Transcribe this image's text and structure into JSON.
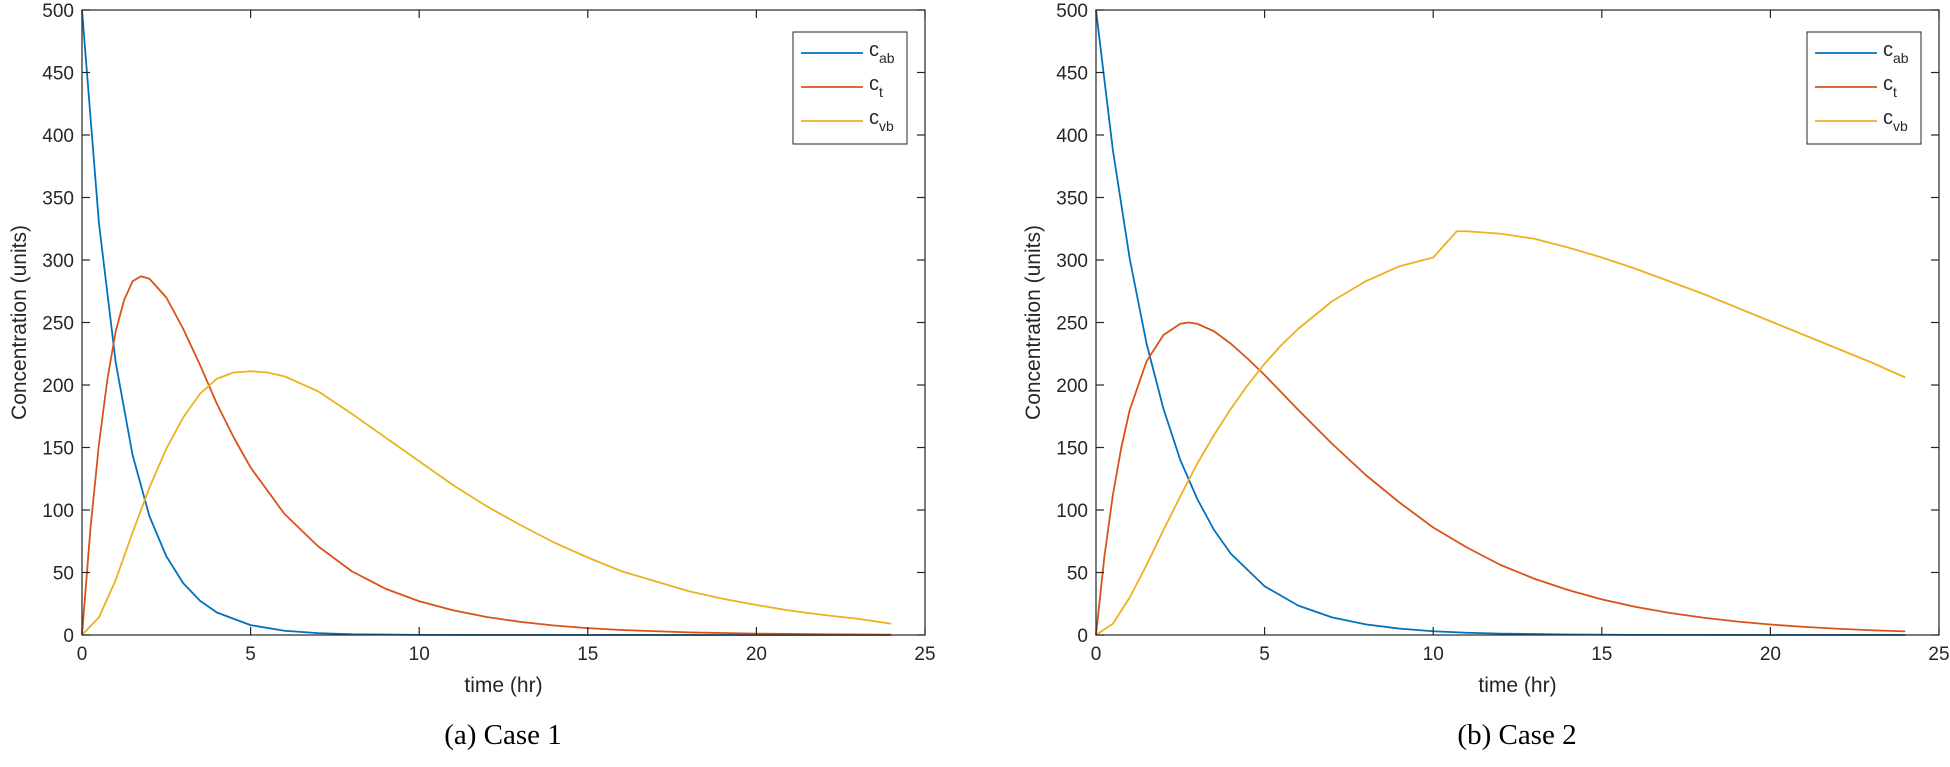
{
  "chart_data": [
    {
      "type": "line",
      "caption": "(a) Case 1",
      "xlabel": "time (hr)",
      "ylabel": "Concentration (units)",
      "xlim": [
        0,
        25
      ],
      "ylim": [
        0,
        500
      ],
      "xticks": [
        0,
        5,
        10,
        15,
        20,
        25
      ],
      "yticks": [
        0,
        50,
        100,
        150,
        200,
        250,
        300,
        350,
        400,
        450,
        500
      ],
      "grid": false,
      "legend": "top-right",
      "series": [
        {
          "name": "c",
          "subscript": "ab",
          "color": "#0072BD",
          "x": [
            0,
            0.5,
            1,
            1.5,
            2,
            2.5,
            3,
            3.5,
            4,
            5,
            6,
            7,
            8,
            10,
            12,
            15,
            20,
            24
          ],
          "y": [
            500,
            330,
            218,
            144,
            95,
            63,
            41.5,
            27.4,
            18,
            7.9,
            3.4,
            1.5,
            0.6,
            0.1,
            0,
            0,
            0,
            0
          ]
        },
        {
          "name": "c",
          "subscript": "t",
          "color": "#D95319",
          "x": [
            0,
            0.25,
            0.5,
            0.75,
            1,
            1.25,
            1.5,
            1.75,
            2,
            2.5,
            3,
            3.5,
            4,
            4.5,
            5,
            6,
            7,
            8,
            9,
            10,
            11,
            12,
            13,
            14,
            15,
            16,
            18,
            20,
            22,
            24
          ],
          "y": [
            0,
            85,
            152,
            204,
            243,
            268,
            283,
            287,
            285,
            270,
            245,
            216,
            185,
            158,
            134,
            97,
            71,
            51,
            37,
            27,
            19.8,
            14.4,
            10.5,
            7.6,
            5.5,
            4,
            2.1,
            1.1,
            0.6,
            0.3
          ]
        },
        {
          "name": "c",
          "subscript": "vb",
          "color": "#EDB120",
          "x": [
            0,
            0.5,
            1,
            1.5,
            2,
            2.5,
            3,
            3.5,
            4,
            4.5,
            5,
            5.5,
            6,
            7,
            8,
            9,
            10,
            11,
            12,
            13,
            14,
            15,
            16,
            17,
            18,
            19,
            20,
            21,
            22,
            23,
            24
          ],
          "y": [
            0,
            14,
            44,
            82,
            118,
            149,
            174,
            193,
            205,
            210,
            211,
            210,
            207,
            195,
            177,
            158,
            139,
            120,
            103,
            88,
            74,
            62,
            51,
            43,
            35,
            29,
            24,
            19.5,
            16,
            13,
            9
          ]
        }
      ]
    },
    {
      "type": "line",
      "caption": "(b) Case 2",
      "xlabel": "time (hr)",
      "ylabel": "Concentration (units)",
      "xlim": [
        0,
        25
      ],
      "ylim": [
        0,
        500
      ],
      "xticks": [
        0,
        5,
        10,
        15,
        20,
        25
      ],
      "yticks": [
        0,
        50,
        100,
        150,
        200,
        250,
        300,
        350,
        400,
        450,
        500
      ],
      "grid": false,
      "legend": "top-right",
      "series": [
        {
          "name": "c",
          "subscript": "ab",
          "color": "#0072BD",
          "x": [
            0,
            0.5,
            1,
            1.5,
            2,
            2.5,
            3,
            3.5,
            4,
            5,
            6,
            7,
            8,
            9,
            10,
            11,
            12,
            14,
            16,
            20,
            24
          ],
          "y": [
            500,
            388,
            301,
            233,
            181,
            140,
            109,
            84,
            65,
            39,
            23.5,
            14.1,
            8.5,
            5.1,
            3,
            1.8,
            1.1,
            0.4,
            0.1,
            0,
            0
          ]
        },
        {
          "name": "c",
          "subscript": "t",
          "color": "#D95319",
          "x": [
            0,
            0.25,
            0.5,
            0.75,
            1,
            1.5,
            2,
            2.5,
            2.75,
            3,
            3.5,
            4,
            4.5,
            5,
            6,
            7,
            8,
            9,
            10,
            11,
            12,
            13,
            14,
            15,
            16,
            17,
            18,
            19,
            20,
            21,
            22,
            23,
            24
          ],
          "y": [
            0,
            63,
            112,
            150,
            180,
            219,
            240,
            249,
            250,
            249,
            243,
            233,
            221,
            208,
            180,
            153,
            128,
            106,
            86,
            70,
            56,
            45,
            36,
            28.5,
            22.5,
            17.7,
            13.9,
            10.8,
            8.4,
            6.5,
            5,
            3.8,
            2.9
          ]
        },
        {
          "name": "c",
          "subscript": "vb",
          "color": "#EDB120",
          "x": [
            0,
            0.5,
            1,
            1.5,
            2,
            2.5,
            3,
            3.5,
            4,
            4.5,
            5,
            5.5,
            6,
            7,
            8,
            9,
            10,
            10.7,
            11,
            12,
            13,
            14,
            15,
            16,
            17,
            18,
            19,
            20,
            21,
            22,
            23,
            24
          ],
          "y": [
            0,
            9,
            30,
            56,
            84,
            111,
            137,
            160,
            181,
            200,
            217,
            232,
            245,
            267,
            283,
            295,
            302,
            323,
            323,
            321,
            317,
            310,
            302,
            293,
            283,
            273,
            262,
            251,
            240,
            229,
            218,
            206
          ]
        }
      ]
    }
  ]
}
